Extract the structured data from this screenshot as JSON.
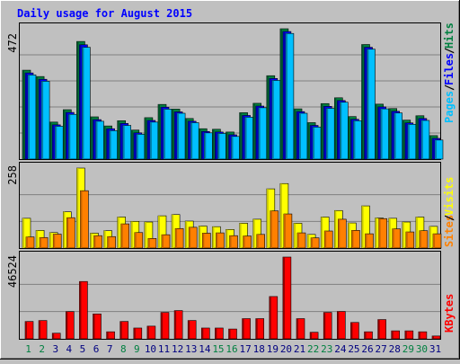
{
  "chart_data": [
    {
      "type": "bar",
      "title": "Daily usage for August 2015",
      "categories": [
        "1",
        "2",
        "3",
        "4",
        "5",
        "6",
        "7",
        "8",
        "9",
        "10",
        "11",
        "12",
        "13",
        "14",
        "15",
        "16",
        "17",
        "18",
        "19",
        "20",
        "21",
        "22",
        "23",
        "24",
        "25",
        "26",
        "27",
        "28",
        "29",
        "30",
        "31"
      ],
      "weekend_categories": [
        "1",
        "2",
        "8",
        "9",
        "15",
        "16",
        "22",
        "23",
        "29",
        "30"
      ],
      "max_label": "472",
      "ylim": [
        0,
        472
      ],
      "series": [
        {
          "name": "Hits",
          "color": "#008040",
          "values": [
            322,
            299,
            134,
            179,
            426,
            153,
            120,
            139,
            105,
            150,
            198,
            181,
            147,
            110,
            108,
            98,
            168,
            202,
            302,
            472,
            182,
            132,
            201,
            222,
            154,
            415,
            199,
            183,
            141,
            157,
            85
          ]
        },
        {
          "name": "Files",
          "color": "#0000ff",
          "values": [
            312,
            289,
            124,
            169,
            414,
            143,
            110,
            129,
            95,
            140,
            188,
            171,
            137,
            100,
            98,
            88,
            158,
            192,
            292,
            462,
            172,
            122,
            191,
            212,
            144,
            405,
            189,
            173,
            131,
            147,
            75
          ]
        },
        {
          "name": "Pages",
          "color": "#00c0ff",
          "values": [
            305,
            282,
            119,
            162,
            405,
            137,
            103,
            122,
            90,
            134,
            181,
            166,
            132,
            95,
            93,
            82,
            152,
            186,
            285,
            455,
            166,
            116,
            184,
            206,
            139,
            398,
            182,
            167,
            126,
            140,
            69
          ]
        }
      ],
      "axis_label": [
        "Pages",
        "Files",
        "Hits"
      ]
    },
    {
      "type": "bar",
      "categories": [
        "1",
        "2",
        "3",
        "4",
        "5",
        "6",
        "7",
        "8",
        "9",
        "10",
        "11",
        "12",
        "13",
        "14",
        "15",
        "16",
        "17",
        "18",
        "19",
        "20",
        "21",
        "22",
        "23",
        "24",
        "25",
        "26",
        "27",
        "28",
        "29",
        "30",
        "31"
      ],
      "max_label": "258",
      "ylim": [
        0,
        258
      ],
      "series": [
        {
          "name": "Visits",
          "color": "#ffff00",
          "values": [
            96,
            57,
            50,
            117,
            258,
            48,
            56,
            100,
            86,
            84,
            104,
            108,
            87,
            71,
            69,
            60,
            80,
            93,
            191,
            208,
            80,
            44,
            100,
            121,
            81,
            136,
            97,
            96,
            84,
            100,
            70
          ]
        },
        {
          "name": "Sites",
          "color": "#ff8000",
          "values": [
            36,
            34,
            45,
            98,
            185,
            40,
            37,
            78,
            50,
            31,
            43,
            63,
            67,
            48,
            49,
            40,
            39,
            44,
            120,
            110,
            49,
            33,
            55,
            93,
            57,
            46,
            95,
            62,
            52,
            56,
            46
          ]
        }
      ],
      "axis_label": [
        "Sites",
        "Visits"
      ]
    },
    {
      "type": "bar",
      "categories": [
        "1",
        "2",
        "3",
        "4",
        "5",
        "6",
        "7",
        "8",
        "9",
        "10",
        "11",
        "12",
        "13",
        "14",
        "15",
        "16",
        "17",
        "18",
        "19",
        "20",
        "21",
        "22",
        "23",
        "24",
        "25",
        "26",
        "27",
        "28",
        "29",
        "30",
        "31"
      ],
      "max_label": "46524",
      "ylim": [
        0,
        46524
      ],
      "series": [
        {
          "name": "KBytes",
          "color": "#ff0000",
          "values": [
            9888,
            10423,
            3208,
            15508,
            32615,
            14172,
            4011,
            9888,
            6148,
            7216,
            15026,
            16079,
            10434,
            6148,
            6148,
            5579,
            11496,
            11496,
            24061,
            46524,
            11496,
            3742,
            15027,
            15564,
            9319,
            4011,
            10959,
            4545,
            4545,
            4011,
            1612
          ]
        }
      ],
      "axis_label": [
        "KBytes"
      ]
    }
  ]
}
